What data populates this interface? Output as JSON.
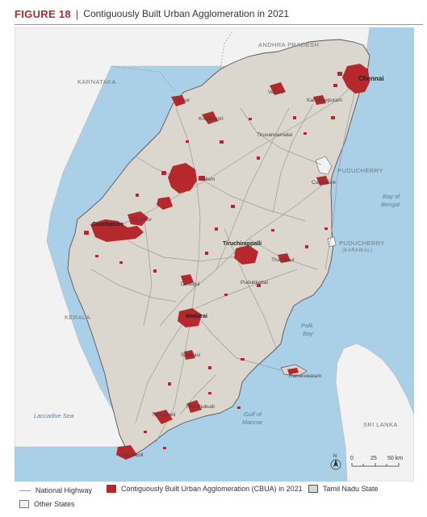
{
  "figure": {
    "label": "FIGURE 18",
    "separator": "|",
    "title": "Contiguously Built Urban Agglomeration in 2021"
  },
  "map": {
    "colors": {
      "sea": "#a9d0e6",
      "other_states": "#f2f2f2",
      "tamil_nadu": "#dcd7ce",
      "cbua": "#b5282c",
      "highway": "#9a9a9a",
      "boundary": "#555555"
    },
    "regions": {
      "andhra_pradesh": "ANDHRA PRADESH",
      "karnataka": "KARNATAKA",
      "kerala": "KERALA",
      "puducherry": "PUDUCHERRY",
      "puducherry_karaikal": "PUDUCHERRY",
      "karaikal": "(KARAIKAL)",
      "sri_lanka": "SRI LANKA"
    },
    "water": {
      "bay_of_bengal_1": "Bay of",
      "bay_of_bengal_2": "Bengal",
      "palk_bay_1": "Palk",
      "palk_bay_2": "Bay",
      "gulf_of_mannar_1": "Gulf of",
      "gulf_of_mannar_2": "Mannar",
      "laccadive_sea": "Laccadive Sea"
    },
    "cities": {
      "chennai": "Chennai",
      "vellore": "Vellore",
      "kancheepuram": "Kancheepuram",
      "hosur": "Hosur",
      "krishnagiri": "Krishnagiri",
      "tiruvannamalai": "Tiruvannamalai",
      "salem": "Salem",
      "cuddalore": "Cuddalore",
      "coimbatore": "Coimbatore",
      "tiruppur": "Tiruppur",
      "tiruchirappalli": "Tiruchirappalli",
      "thanjavur": "Thanjavur",
      "pudukkottai": "Pudukkottai",
      "dindigul": "Dindigul",
      "madurai": "Madurai",
      "sivakasi": "Sivakasi",
      "rameswaram": "Rameswaram",
      "thoothukudi": "Thoothukudi",
      "tirunelveli": "Tirunelveli",
      "nagercoil": "Nagercoil"
    },
    "scale": {
      "tick_0": "0",
      "tick_25": "25",
      "tick_50": "50 km"
    },
    "north_label": "N"
  },
  "legend": {
    "highway": "National Highway",
    "cbua": "Contiguously Built Urban Agglomeration (CBUA) in 2021",
    "tamil_nadu": "Tamil Nadu State",
    "other_states": "Other States"
  }
}
